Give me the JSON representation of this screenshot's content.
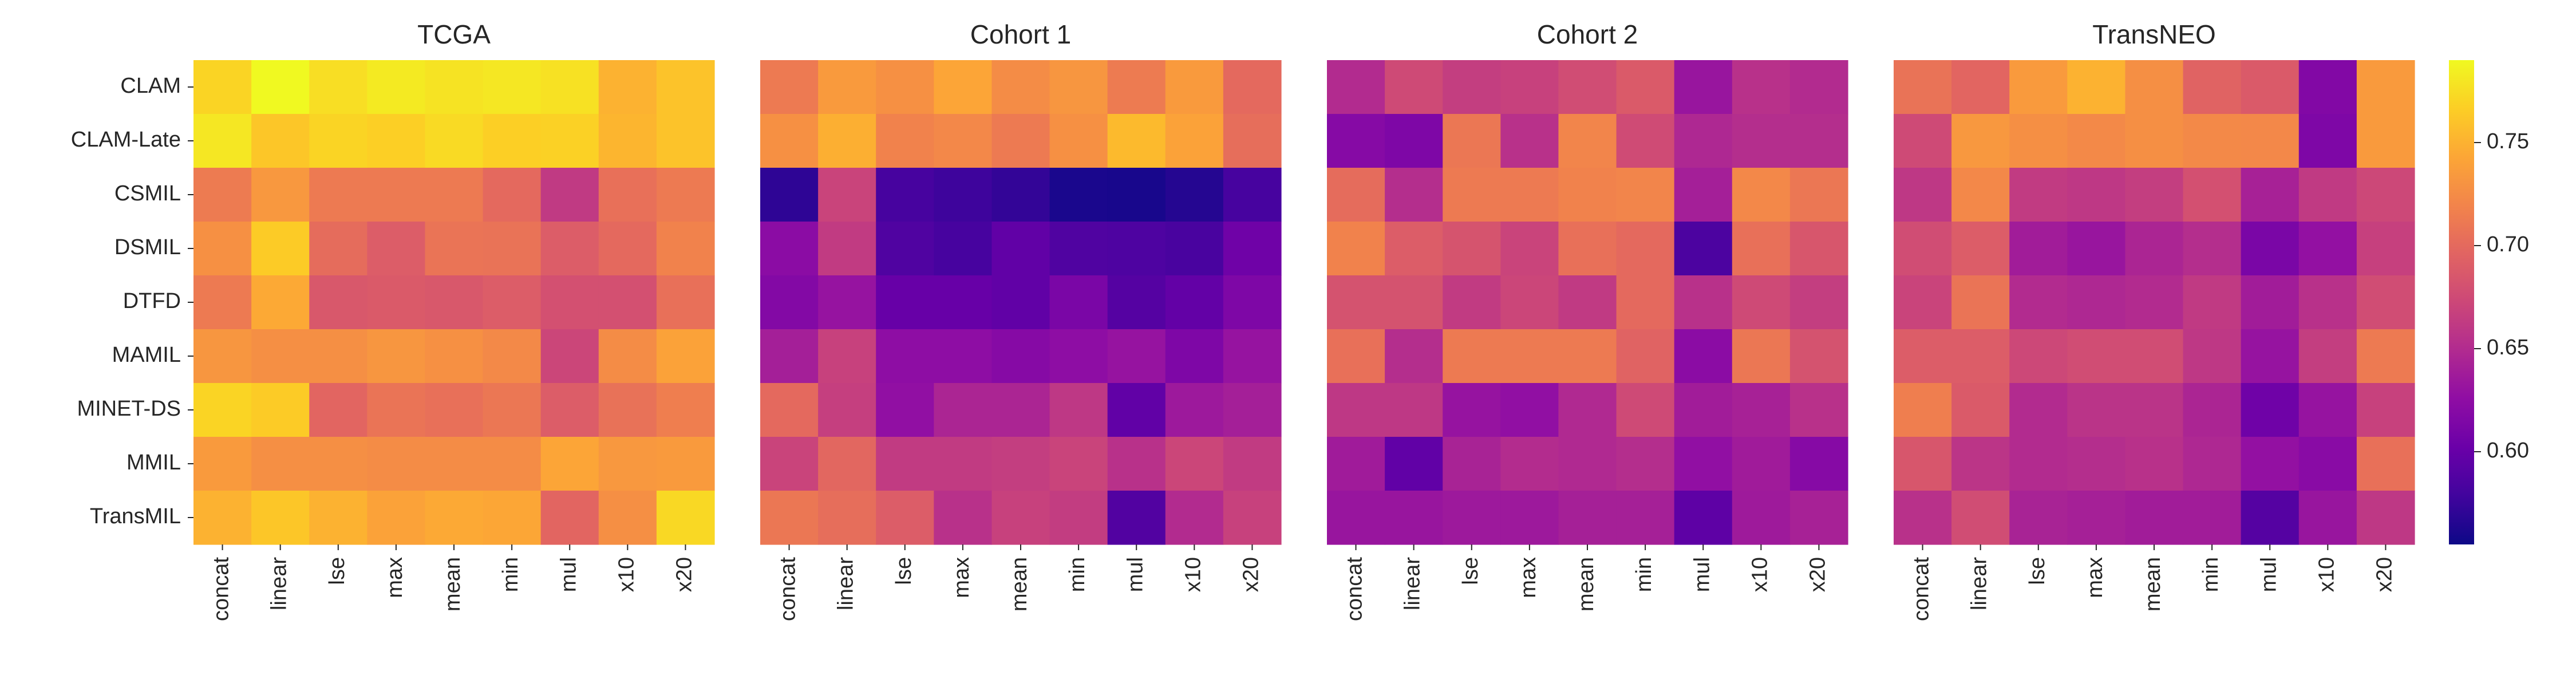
{
  "chart_data": {
    "type": "heatmap",
    "colormap": "plasma",
    "color_range": [
      0.555,
      0.79
    ],
    "colorbar": {
      "ticks": [
        0.6,
        0.65,
        0.7,
        0.75
      ],
      "tick_labels": [
        "0.60",
        "0.65",
        "0.70",
        "0.75"
      ]
    },
    "rows": [
      "CLAM",
      "CLAM-Late",
      "CSMIL",
      "DSMIL",
      "DTFD",
      "MAMIL",
      "MINET-DS",
      "MMIL",
      "TransMIL"
    ],
    "cols": [
      "concat",
      "linear",
      "lse",
      "max",
      "mean",
      "min",
      "mul",
      "x10",
      "x20"
    ],
    "panels": [
      {
        "title": "TCGA",
        "values": [
          [
            0.77,
            0.79,
            0.775,
            0.782,
            0.778,
            0.78,
            0.777,
            0.75,
            0.76
          ],
          [
            0.78,
            0.762,
            0.77,
            0.767,
            0.773,
            0.767,
            0.768,
            0.752,
            0.76
          ],
          [
            0.713,
            0.733,
            0.712,
            0.712,
            0.712,
            0.7,
            0.662,
            0.705,
            0.712
          ],
          [
            0.728,
            0.765,
            0.702,
            0.69,
            0.708,
            0.707,
            0.69,
            0.7,
            0.718
          ],
          [
            0.712,
            0.745,
            0.686,
            0.688,
            0.686,
            0.69,
            0.68,
            0.68,
            0.705
          ],
          [
            0.732,
            0.727,
            0.727,
            0.732,
            0.728,
            0.723,
            0.672,
            0.725,
            0.74
          ],
          [
            0.77,
            0.765,
            0.697,
            0.708,
            0.705,
            0.71,
            0.69,
            0.706,
            0.715
          ],
          [
            0.735,
            0.727,
            0.727,
            0.725,
            0.725,
            0.725,
            0.742,
            0.733,
            0.735
          ],
          [
            0.75,
            0.762,
            0.75,
            0.74,
            0.745,
            0.743,
            0.697,
            0.727,
            0.772
          ]
        ]
      },
      {
        "title": "Cohort 1",
        "values": [
          [
            0.712,
            0.735,
            0.728,
            0.742,
            0.725,
            0.732,
            0.713,
            0.735,
            0.7
          ],
          [
            0.728,
            0.748,
            0.718,
            0.722,
            0.712,
            0.728,
            0.755,
            0.74,
            0.703
          ],
          [
            0.57,
            0.67,
            0.582,
            0.577,
            0.572,
            0.561,
            0.56,
            0.566,
            0.582
          ],
          [
            0.623,
            0.663,
            0.587,
            0.582,
            0.597,
            0.587,
            0.586,
            0.583,
            0.605
          ],
          [
            0.618,
            0.63,
            0.6,
            0.6,
            0.597,
            0.612,
            0.59,
            0.598,
            0.615
          ],
          [
            0.64,
            0.668,
            0.625,
            0.625,
            0.62,
            0.625,
            0.63,
            0.615,
            0.63
          ],
          [
            0.7,
            0.666,
            0.627,
            0.645,
            0.645,
            0.66,
            0.597,
            0.635,
            0.64
          ],
          [
            0.67,
            0.698,
            0.663,
            0.663,
            0.665,
            0.67,
            0.655,
            0.672,
            0.663
          ],
          [
            0.71,
            0.703,
            0.69,
            0.655,
            0.668,
            0.664,
            0.588,
            0.65,
            0.668
          ]
        ]
      },
      {
        "title": "Cohort 2",
        "values": [
          [
            0.65,
            0.675,
            0.665,
            0.668,
            0.677,
            0.688,
            0.632,
            0.655,
            0.65
          ],
          [
            0.62,
            0.615,
            0.71,
            0.655,
            0.72,
            0.676,
            0.647,
            0.652,
            0.652
          ],
          [
            0.702,
            0.652,
            0.712,
            0.712,
            0.718,
            0.72,
            0.64,
            0.722,
            0.71
          ],
          [
            0.718,
            0.69,
            0.683,
            0.67,
            0.705,
            0.7,
            0.585,
            0.705,
            0.685
          ],
          [
            0.682,
            0.682,
            0.663,
            0.672,
            0.662,
            0.7,
            0.655,
            0.675,
            0.665
          ],
          [
            0.705,
            0.652,
            0.712,
            0.712,
            0.712,
            0.695,
            0.623,
            0.71,
            0.682
          ],
          [
            0.66,
            0.66,
            0.63,
            0.627,
            0.648,
            0.675,
            0.638,
            0.642,
            0.655
          ],
          [
            0.637,
            0.597,
            0.643,
            0.651,
            0.648,
            0.652,
            0.627,
            0.637,
            0.62
          ],
          [
            0.632,
            0.632,
            0.635,
            0.635,
            0.641,
            0.641,
            0.595,
            0.636,
            0.642
          ]
        ]
      },
      {
        "title": "TransNEO",
        "values": [
          [
            0.707,
            0.697,
            0.735,
            0.75,
            0.727,
            0.695,
            0.688,
            0.617,
            0.735
          ],
          [
            0.675,
            0.733,
            0.727,
            0.723,
            0.727,
            0.723,
            0.722,
            0.615,
            0.735
          ],
          [
            0.66,
            0.722,
            0.663,
            0.66,
            0.665,
            0.68,
            0.642,
            0.662,
            0.673
          ],
          [
            0.677,
            0.69,
            0.638,
            0.632,
            0.645,
            0.652,
            0.612,
            0.628,
            0.667
          ],
          [
            0.67,
            0.708,
            0.65,
            0.647,
            0.65,
            0.662,
            0.638,
            0.655,
            0.677
          ],
          [
            0.69,
            0.69,
            0.673,
            0.677,
            0.677,
            0.66,
            0.63,
            0.665,
            0.712
          ],
          [
            0.715,
            0.688,
            0.65,
            0.657,
            0.657,
            0.645,
            0.605,
            0.63,
            0.668
          ],
          [
            0.685,
            0.658,
            0.65,
            0.652,
            0.655,
            0.647,
            0.628,
            0.622,
            0.705
          ],
          [
            0.655,
            0.677,
            0.643,
            0.641,
            0.638,
            0.638,
            0.59,
            0.632,
            0.66
          ]
        ]
      }
    ]
  }
}
